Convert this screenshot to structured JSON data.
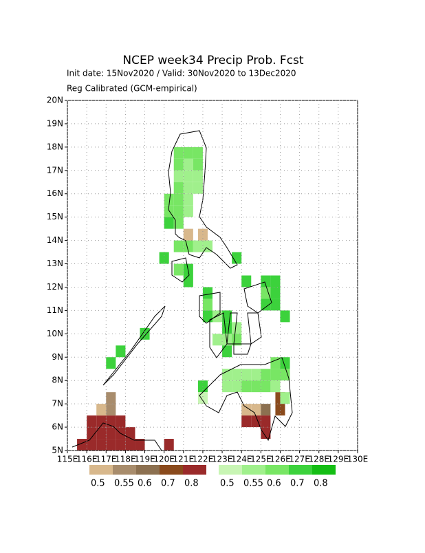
{
  "chart_data": {
    "type": "gridmap",
    "title": "NCEP week34 Precip Prob. Fcst",
    "subtitle": "Init date: 15Nov2020 / Valid: 30Nov2020 to 13Dec2020",
    "note": "Reg Calibrated (GCM-empirical)",
    "xlim": [
      115,
      130
    ],
    "ylim": [
      5,
      20
    ],
    "xticks": [
      {
        "value": 115,
        "label": "115E"
      },
      {
        "value": 116,
        "label": "116E"
      },
      {
        "value": 117,
        "label": "117E"
      },
      {
        "value": 118,
        "label": "118E"
      },
      {
        "value": 119,
        "label": "119E"
      },
      {
        "value": 120,
        "label": "120E"
      },
      {
        "value": 121,
        "label": "121E"
      },
      {
        "value": 122,
        "label": "122E"
      },
      {
        "value": 123,
        "label": "123E"
      },
      {
        "value": 124,
        "label": "124E"
      },
      {
        "value": 125,
        "label": "125E"
      },
      {
        "value": 126,
        "label": "126E"
      },
      {
        "value": 127,
        "label": "127E"
      },
      {
        "value": 128,
        "label": "128E"
      },
      {
        "value": 129,
        "label": "129E"
      },
      {
        "value": 130,
        "label": "130E"
      }
    ],
    "yticks": [
      {
        "value": 5,
        "label": "5N"
      },
      {
        "value": 6,
        "label": "6N"
      },
      {
        "value": 7,
        "label": "7N"
      },
      {
        "value": 8,
        "label": "8N"
      },
      {
        "value": 9,
        "label": "9N"
      },
      {
        "value": 10,
        "label": "10N"
      },
      {
        "value": 11,
        "label": "11N"
      },
      {
        "value": 12,
        "label": "12N"
      },
      {
        "value": 13,
        "label": "13N"
      },
      {
        "value": 14,
        "label": "14N"
      },
      {
        "value": 15,
        "label": "15N"
      },
      {
        "value": 16,
        "label": "16N"
      },
      {
        "value": 17,
        "label": "17N"
      },
      {
        "value": 18,
        "label": "18N"
      },
      {
        "value": 19,
        "label": "19N"
      },
      {
        "value": 20,
        "label": "20N"
      }
    ],
    "grid": true,
    "below": {
      "levels": [
        0.5,
        0.55,
        0.6,
        0.7,
        0.8
      ],
      "colors": [
        "#d8b88c",
        "#a88c6c",
        "#8c7050",
        "#8a4a1c",
        "#9a2a2a"
      ],
      "cells": [
        [
          124,
          6.5,
          0.5
        ],
        [
          124.5,
          6.5,
          0.5
        ],
        [
          125,
          6.5,
          0.6
        ],
        [
          124,
          6,
          0.8
        ],
        [
          124.5,
          6,
          0.8
        ],
        [
          125,
          6,
          0.8
        ],
        [
          125,
          5.5,
          0.8
        ],
        [
          125.75,
          6.5,
          0.7
        ],
        [
          125.75,
          7,
          0.7
        ],
        [
          121,
          14,
          0.5
        ],
        [
          121.75,
          14,
          0.5
        ],
        [
          116,
          6,
          0.8
        ],
        [
          116.5,
          6,
          0.8
        ],
        [
          117,
          6,
          0.8
        ],
        [
          117.5,
          6,
          0.8
        ],
        [
          116,
          5.5,
          0.8
        ],
        [
          116.5,
          5.5,
          0.8
        ],
        [
          117,
          5.5,
          0.8
        ],
        [
          117.5,
          5.5,
          0.8
        ],
        [
          118,
          5.5,
          0.8
        ],
        [
          115.5,
          5,
          0.8
        ],
        [
          116,
          5,
          0.8
        ],
        [
          116.5,
          5,
          0.8
        ],
        [
          117,
          5,
          0.8
        ],
        [
          117.5,
          5,
          0.8
        ],
        [
          118,
          5,
          0.8
        ],
        [
          118.5,
          5,
          0.8
        ],
        [
          120,
          5,
          0.8
        ],
        [
          117,
          6.5,
          0.55
        ],
        [
          117,
          7,
          0.55
        ],
        [
          116.5,
          6.5,
          0.5
        ]
      ]
    },
    "above": {
      "levels": [
        0.5,
        0.55,
        0.6,
        0.7,
        0.8
      ],
      "colors": [
        "#c8f5b4",
        "#a0f08c",
        "#78e664",
        "#3cd23c",
        "#14be14"
      ],
      "cells": [
        [
          120.5,
          17.5,
          0.6
        ],
        [
          121,
          17.5,
          0.6
        ],
        [
          121.5,
          17.5,
          0.6
        ],
        [
          120.5,
          17,
          0.6
        ],
        [
          121,
          17,
          0.55
        ],
        [
          121.5,
          17,
          0.6
        ],
        [
          120.5,
          16.5,
          0.55
        ],
        [
          121,
          16.5,
          0.55
        ],
        [
          121.5,
          16.5,
          0.55
        ],
        [
          120.5,
          16,
          0.6
        ],
        [
          121,
          16,
          0.55
        ],
        [
          121.5,
          16,
          0.55
        ],
        [
          120,
          15.5,
          0.6
        ],
        [
          120.5,
          15.5,
          0.6
        ],
        [
          121,
          15.5,
          0.55
        ],
        [
          120,
          15,
          0.6
        ],
        [
          120.5,
          15,
          0.6
        ],
        [
          121,
          15,
          0.55
        ],
        [
          120,
          14.5,
          0.7
        ],
        [
          120.5,
          14.5,
          0.6
        ],
        [
          120.5,
          13.5,
          0.6
        ],
        [
          121,
          13.5,
          0.6
        ],
        [
          121.5,
          13.5,
          0.55
        ],
        [
          122,
          13.5,
          0.55
        ],
        [
          119.75,
          13,
          0.7
        ],
        [
          121,
          12.5,
          0.7
        ],
        [
          120.5,
          12.5,
          0.6
        ],
        [
          121,
          12,
          0.7
        ],
        [
          122,
          11.5,
          0.7
        ],
        [
          122,
          11,
          0.6
        ],
        [
          122,
          10.5,
          0.7
        ],
        [
          122.5,
          10.5,
          0.55
        ],
        [
          123,
          10.5,
          0.7
        ],
        [
          123,
          10,
          0.7
        ],
        [
          123.5,
          10,
          0.55
        ],
        [
          122.5,
          9.5,
          0.55
        ],
        [
          123,
          9.5,
          0.55
        ],
        [
          123.5,
          9.5,
          0.6
        ],
        [
          123,
          9,
          0.7
        ],
        [
          124,
          12,
          0.7
        ],
        [
          125,
          12,
          0.7
        ],
        [
          125.5,
          12,
          0.7
        ],
        [
          125,
          11.5,
          0.6
        ],
        [
          125.5,
          11.5,
          0.7
        ],
        [
          125,
          11,
          0.7
        ],
        [
          125.5,
          11,
          0.7
        ],
        [
          126,
          10.5,
          0.7
        ],
        [
          125.5,
          8.5,
          0.6
        ],
        [
          126,
          8.5,
          0.7
        ],
        [
          123,
          8,
          0.55
        ],
        [
          123.5,
          8,
          0.55
        ],
        [
          124,
          8,
          0.55
        ],
        [
          124.5,
          8,
          0.55
        ],
        [
          125,
          8,
          0.6
        ],
        [
          125.5,
          8,
          0.6
        ],
        [
          126,
          8,
          0.6
        ],
        [
          121.75,
          7.5,
          0.7
        ],
        [
          123,
          7.5,
          0.55
        ],
        [
          123.5,
          7.5,
          0.55
        ],
        [
          124,
          7.5,
          0.6
        ],
        [
          124.5,
          7.5,
          0.6
        ],
        [
          125,
          7.5,
          0.6
        ],
        [
          125.5,
          7.5,
          0.55
        ],
        [
          121.75,
          7,
          0.5
        ],
        [
          126,
          7,
          0.55
        ],
        [
          117.5,
          9,
          0.7
        ],
        [
          117,
          8.5,
          0.7
        ],
        [
          118.75,
          9.75,
          0.7
        ],
        [
          123.5,
          13,
          0.7
        ]
      ]
    }
  }
}
